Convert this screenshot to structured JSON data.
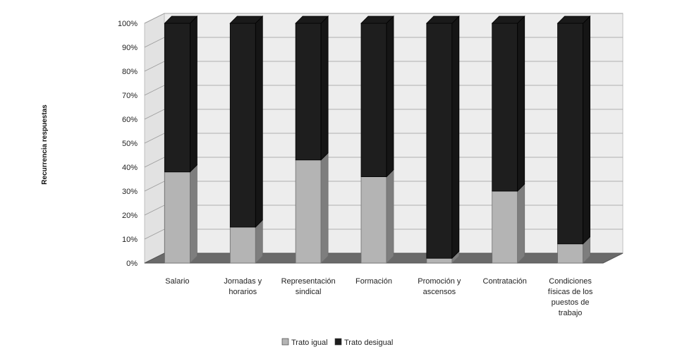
{
  "chart_data": {
    "type": "bar",
    "stacked": true,
    "percent_stacked": true,
    "three_d": true,
    "categories": [
      [
        "Salario"
      ],
      [
        "Jornadas y",
        "horarios"
      ],
      [
        "Representación",
        "sindical"
      ],
      [
        "Formación"
      ],
      [
        "Promoción y",
        "ascensos"
      ],
      [
        "Contratación"
      ],
      [
        "Condiciones",
        "físicas de los",
        "puestos de",
        "trabajo"
      ]
    ],
    "series": [
      {
        "name": "Trato igual",
        "values": [
          38,
          15,
          43,
          36,
          2,
          30,
          8
        ],
        "color": "#b4b4b4"
      },
      {
        "name": "Trato desigual",
        "values": [
          62,
          85,
          57,
          64,
          98,
          70,
          92
        ],
        "color": "#1e1e1e"
      }
    ],
    "ylabel": "Recurrencia respuestas",
    "ylim": [
      0,
      100
    ],
    "yticks": [
      "0%",
      "10%",
      "20%",
      "30%",
      "40%",
      "50%",
      "60%",
      "70%",
      "80%",
      "90%",
      "100%"
    ],
    "grid": true,
    "legend": "bottom"
  }
}
